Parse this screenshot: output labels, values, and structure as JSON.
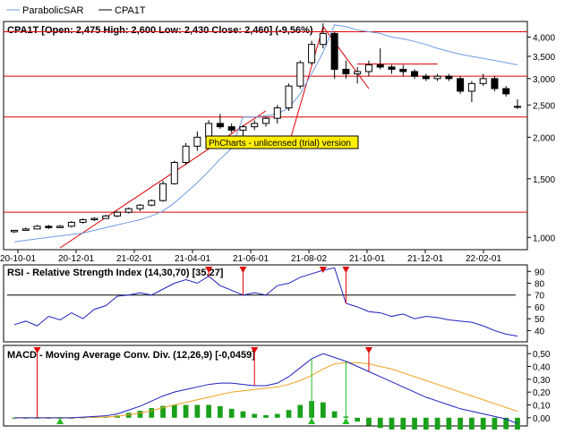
{
  "legend": {
    "items": [
      {
        "label": "ParabolicSAR",
        "color": "#6f9be5"
      },
      {
        "label": "CPA1T",
        "color": "#000000"
      }
    ]
  },
  "colors": {
    "candle_up": "#ffffff",
    "candle_down": "#000000",
    "sar": "#6f9be5",
    "trend": "#e00000",
    "rsi": "#2020c0",
    "macd": "#2020c0",
    "signal": "#f0a020",
    "hist": "#1aa01a",
    "signal_marker": "#e00000",
    "buy_marker": "#22bb22"
  },
  "watermark": "PhCharts - unlicensed (trial) version",
  "chart_data": [
    {
      "type": "candlestick",
      "title": "CPA1T [Open: 2,475  High: 2,600  Low: 2,430  Close: 2,460] (-9,56%)",
      "scale": "log",
      "ylim": [
        0.93,
        4.4
      ],
      "yticks": [
        "1,000",
        "1,500",
        "2,000",
        "2,500",
        "3,000",
        "3,500",
        "4,000"
      ],
      "ytick_values": [
        1.0,
        1.5,
        2.0,
        2.5,
        3.0,
        3.5,
        4.0
      ],
      "xticks": [
        "20-10-01",
        "20-12-01",
        "21-02-01",
        "21-04-01",
        "21-06-01",
        "21-08-02",
        "21-10-01",
        "21-12-01",
        "22-02-01"
      ],
      "candles": [
        [
          1.04,
          1.05,
          1.03,
          1.05
        ],
        [
          1.05,
          1.07,
          1.05,
          1.06
        ],
        [
          1.06,
          1.09,
          1.06,
          1.08
        ],
        [
          1.08,
          1.09,
          1.06,
          1.07
        ],
        [
          1.07,
          1.09,
          1.07,
          1.08
        ],
        [
          1.08,
          1.12,
          1.07,
          1.11
        ],
        [
          1.11,
          1.14,
          1.1,
          1.13
        ],
        [
          1.13,
          1.15,
          1.12,
          1.14
        ],
        [
          1.14,
          1.17,
          1.14,
          1.16
        ],
        [
          1.16,
          1.2,
          1.15,
          1.19
        ],
        [
          1.19,
          1.23,
          1.18,
          1.22
        ],
        [
          1.22,
          1.26,
          1.2,
          1.25
        ],
        [
          1.25,
          1.3,
          1.24,
          1.29
        ],
        [
          1.29,
          1.48,
          1.28,
          1.45
        ],
        [
          1.45,
          1.7,
          1.44,
          1.68
        ],
        [
          1.68,
          1.92,
          1.65,
          1.88
        ],
        [
          1.88,
          2.08,
          1.82,
          2.0
        ],
        [
          2.0,
          2.25,
          1.95,
          2.2
        ],
        [
          2.2,
          2.35,
          2.12,
          2.15
        ],
        [
          2.15,
          2.2,
          2.06,
          2.1
        ],
        [
          2.1,
          2.18,
          2.02,
          2.15
        ],
        [
          2.15,
          2.25,
          2.1,
          2.2
        ],
        [
          2.2,
          2.3,
          2.15,
          2.28
        ],
        [
          2.28,
          2.5,
          2.2,
          2.45
        ],
        [
          2.45,
          2.9,
          2.4,
          2.85
        ],
        [
          2.85,
          3.4,
          2.8,
          3.35
        ],
        [
          3.35,
          3.9,
          3.3,
          3.8
        ],
        [
          3.8,
          4.4,
          3.7,
          4.1
        ],
        [
          4.1,
          4.15,
          3.0,
          3.2
        ],
        [
          3.2,
          3.4,
          3.0,
          3.1
        ],
        [
          3.1,
          3.25,
          2.9,
          3.15
        ],
        [
          3.15,
          3.4,
          3.05,
          3.3
        ],
        [
          3.3,
          3.7,
          3.2,
          3.25
        ],
        [
          3.25,
          3.3,
          3.1,
          3.2
        ],
        [
          3.2,
          3.3,
          3.05,
          3.15
        ],
        [
          3.15,
          3.2,
          3.0,
          3.05
        ],
        [
          3.05,
          3.1,
          2.95,
          3.0
        ],
        [
          3.0,
          3.1,
          2.95,
          3.05
        ],
        [
          3.05,
          3.1,
          2.95,
          3.0
        ],
        [
          3.0,
          3.05,
          2.7,
          2.75
        ],
        [
          2.75,
          2.95,
          2.55,
          2.9
        ],
        [
          2.9,
          3.1,
          2.85,
          3.0
        ],
        [
          3.0,
          3.05,
          2.75,
          2.8
        ],
        [
          2.8,
          2.85,
          2.65,
          2.7
        ],
        [
          2.475,
          2.6,
          2.43,
          2.46
        ]
      ],
      "sar": [
        0.97,
        0.98,
        0.99,
        1.0,
        1.01,
        1.02,
        1.03,
        1.05,
        1.07,
        1.09,
        1.11,
        1.13,
        1.16,
        1.2,
        1.27,
        1.36,
        1.46,
        1.58,
        1.72,
        1.85,
        2.3,
        2.3,
        2.32,
        2.35,
        2.45,
        2.7,
        3.1,
        3.6,
        4.35,
        4.3,
        4.2,
        4.15,
        4.1,
        4.0,
        3.95,
        3.88,
        3.8,
        3.7,
        3.62,
        3.55,
        3.5,
        3.45,
        3.4,
        3.35,
        3.3
      ],
      "trendlines": [
        {
          "from": [
            4,
            0.93
          ],
          "to": [
            22,
            2.4
          ]
        },
        {
          "from": [
            24,
            1.9
          ],
          "to": [
            27,
            4.3
          ]
        },
        {
          "from": [
            27,
            4.3
          ],
          "to": [
            31,
            2.8
          ]
        }
      ],
      "h_lines": [
        4.15,
        3.05,
        2.3,
        1.19
      ],
      "resistance": {
        "from": 30,
        "to": 37,
        "value": 3.32
      }
    },
    {
      "type": "line",
      "title": "RSI - Relative Strength Index (14,30,70) [35,27]",
      "ylim": [
        32,
        94
      ],
      "yticks": [
        "40",
        "50",
        "60",
        "70",
        "80",
        "90"
      ],
      "ytick_values": [
        40,
        50,
        60,
        70,
        80,
        90
      ],
      "level": 70,
      "values": [
        45,
        48,
        44,
        52,
        49,
        55,
        50,
        58,
        61,
        69,
        70,
        72,
        70,
        75,
        80,
        83,
        80,
        86,
        78,
        74,
        70,
        72,
        70,
        78,
        80,
        85,
        88,
        91,
        93,
        63,
        60,
        56,
        55,
        52,
        54,
        50,
        52,
        51,
        49,
        48,
        47,
        44,
        40,
        37,
        35.27
      ],
      "sell_signals": [
        17,
        20,
        27,
        29
      ]
    },
    {
      "type": "line",
      "title": "MACD - Moving Average Conv. Div. (12,26,9) [-0,0459]",
      "ylim": [
        -0.05,
        0.55
      ],
      "yticks": [
        "0,00",
        "0,10",
        "0,20",
        "0,30",
        "0,40",
        "0,50"
      ],
      "ytick_values": [
        0.0,
        0.1,
        0.2,
        0.3,
        0.4,
        0.5
      ],
      "series": [
        {
          "name": "MACD",
          "values": [
            0.0,
            0.0,
            0.0,
            0.0,
            0.0,
            0.0,
            0.005,
            0.01,
            0.015,
            0.03,
            0.06,
            0.09,
            0.13,
            0.17,
            0.2,
            0.22,
            0.24,
            0.26,
            0.27,
            0.27,
            0.26,
            0.25,
            0.25,
            0.27,
            0.32,
            0.39,
            0.46,
            0.5,
            0.47,
            0.44,
            0.4,
            0.36,
            0.32,
            0.28,
            0.24,
            0.2,
            0.16,
            0.13,
            0.1,
            0.07,
            0.05,
            0.03,
            0.01,
            -0.01,
            -0.0459
          ]
        },
        {
          "name": "Signal",
          "values": [
            0.0,
            0.0,
            0.0,
            0.0,
            0.0,
            0.0,
            0.002,
            0.004,
            0.006,
            0.012,
            0.022,
            0.036,
            0.055,
            0.078,
            0.1,
            0.12,
            0.14,
            0.16,
            0.18,
            0.2,
            0.21,
            0.22,
            0.23,
            0.24,
            0.26,
            0.29,
            0.33,
            0.38,
            0.42,
            0.43,
            0.43,
            0.42,
            0.4,
            0.38,
            0.35,
            0.32,
            0.29,
            0.26,
            0.23,
            0.2,
            0.17,
            0.14,
            0.11,
            0.08,
            0.05
          ]
        }
      ],
      "sell_signals": [
        2,
        21,
        31
      ],
      "buy_signals": [
        4,
        26,
        29
      ]
    }
  ]
}
